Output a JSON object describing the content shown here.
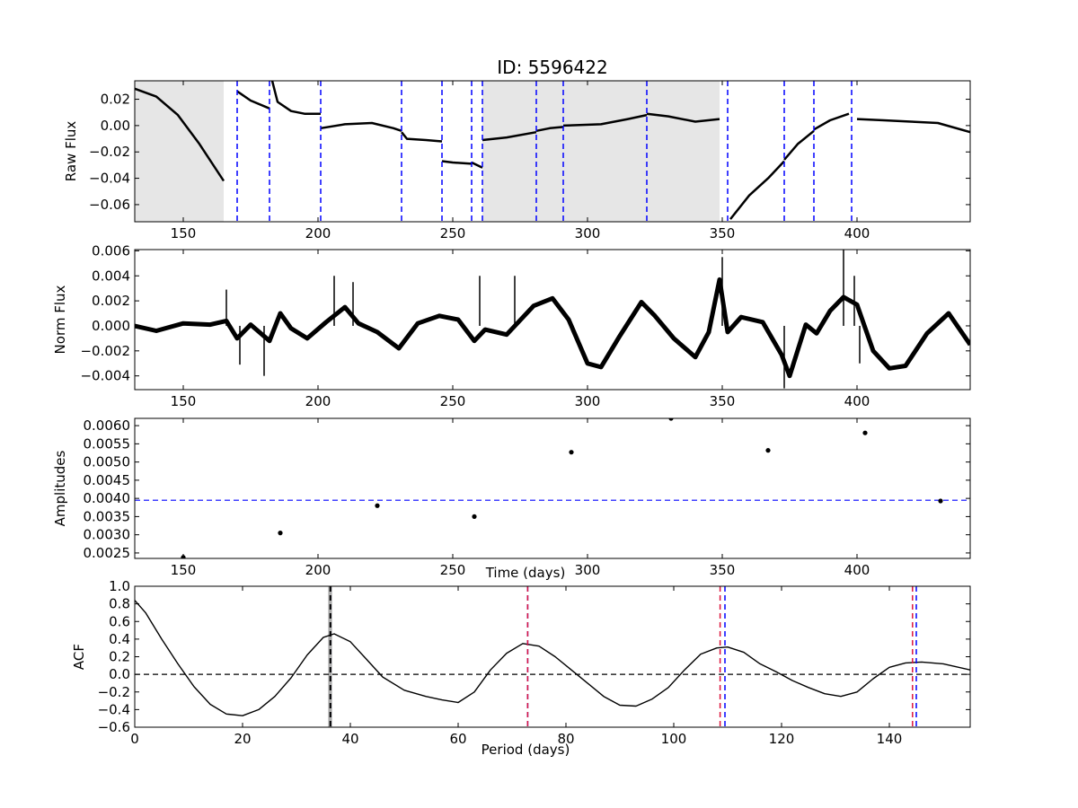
{
  "figure": {
    "title": "ID: 5596422"
  },
  "chart_data": [
    {
      "type": "line",
      "panel": "raw",
      "title": "ID: 5596422",
      "xlabel": "",
      "ylabel": "Raw Flux",
      "xlim": [
        132,
        442
      ],
      "ylim": [
        -0.073,
        0.034
      ],
      "xticks": [
        150,
        200,
        250,
        300,
        350,
        400
      ],
      "yticks": [
        -0.06,
        -0.04,
        -0.02,
        0.0,
        0.02
      ],
      "ytick_labels": [
        "−0.06",
        "−0.04",
        "−0.02",
        "0.00",
        "0.02"
      ],
      "shaded_regions": [
        [
          132,
          165
        ],
        [
          261,
          349
        ]
      ],
      "shade_color": "#e6e6e6",
      "line_color": "#000000",
      "vline_color": "#0000ff",
      "quarter_boundaries": [
        170,
        182,
        201,
        231,
        246,
        257,
        261,
        281,
        291,
        322,
        352,
        373,
        384,
        398
      ],
      "segments": [
        {
          "x": [
            132,
            140,
            148,
            156,
            165
          ],
          "y": [
            0.028,
            0.022,
            0.008,
            -0.014,
            -0.042
          ]
        },
        {
          "x": [
            170,
            175,
            182
          ],
          "y": [
            0.026,
            0.019,
            0.013
          ]
        },
        {
          "x": [
            183,
            185,
            190,
            195,
            201
          ],
          "y": [
            0.034,
            0.018,
            0.011,
            0.009,
            0.009
          ]
        },
        {
          "x": [
            201,
            210,
            220,
            228,
            231
          ],
          "y": [
            -0.002,
            0.001,
            0.002,
            -0.002,
            -0.004
          ]
        },
        {
          "x": [
            231,
            233,
            240,
            246
          ],
          "y": [
            -0.005,
            -0.01,
            -0.011,
            -0.012
          ]
        },
        {
          "x": [
            246,
            250,
            257
          ],
          "y": [
            -0.027,
            -0.028,
            -0.029
          ]
        },
        {
          "x": [
            257,
            259,
            261
          ],
          "y": [
            -0.028,
            -0.03,
            -0.032
          ]
        },
        {
          "x": [
            261,
            270,
            281
          ],
          "y": [
            -0.011,
            -0.009,
            -0.005
          ]
        },
        {
          "x": [
            281,
            286,
            291
          ],
          "y": [
            -0.004,
            -0.002,
            -0.001
          ]
        },
        {
          "x": [
            291,
            305,
            315,
            322
          ],
          "y": [
            0.0,
            0.001,
            0.005,
            0.008
          ]
        },
        {
          "x": [
            322,
            330,
            340,
            349
          ],
          "y": [
            0.009,
            0.007,
            0.003,
            0.005
          ]
        },
        {
          "x": [
            353,
            360,
            367,
            373
          ],
          "y": [
            -0.071,
            -0.053,
            -0.04,
            -0.027
          ]
        },
        {
          "x": [
            373,
            378,
            384
          ],
          "y": [
            -0.026,
            -0.014,
            -0.004
          ]
        },
        {
          "x": [
            384,
            390,
            397
          ],
          "y": [
            -0.003,
            0.004,
            0.009
          ]
        },
        {
          "x": [
            400,
            410,
            420,
            430,
            442
          ],
          "y": [
            0.005,
            0.004,
            0.003,
            0.002,
            -0.005
          ]
        }
      ]
    },
    {
      "type": "line",
      "panel": "norm",
      "xlabel": "",
      "ylabel": "Norm Flux",
      "xlim": [
        132,
        442
      ],
      "ylim": [
        -0.0051,
        0.0061
      ],
      "xticks": [
        150,
        200,
        250,
        300,
        350,
        400
      ],
      "yticks": [
        -0.004,
        -0.002,
        0.0,
        0.002,
        0.004,
        0.006
      ],
      "ytick_labels": [
        "−0.004",
        "−0.002",
        "0.000",
        "0.002",
        "0.004",
        "0.006"
      ],
      "line_color": "#000000",
      "x": [
        132,
        140,
        150,
        160,
        166,
        170,
        175,
        182,
        186,
        190,
        196,
        203,
        210,
        215,
        222,
        230,
        237,
        245,
        252,
        258,
        262,
        270,
        280,
        287,
        293,
        300,
        305,
        312,
        320,
        325,
        332,
        340,
        345,
        349,
        352,
        357,
        365,
        372,
        375,
        381,
        385,
        390,
        395,
        400,
        406,
        412,
        418,
        426,
        434,
        442
      ],
      "y": [
        0.0,
        -0.0004,
        0.0002,
        0.0001,
        0.0004,
        -0.001,
        0.0001,
        -0.0012,
        0.001,
        -0.0002,
        -0.001,
        0.0003,
        0.0015,
        0.0002,
        -0.0005,
        -0.0018,
        0.0002,
        0.0008,
        0.0005,
        -0.0012,
        -0.0003,
        -0.0007,
        0.0016,
        0.0022,
        0.0005,
        -0.003,
        -0.0033,
        -0.0008,
        0.0019,
        0.0008,
        -0.001,
        -0.0025,
        -0.0005,
        0.0037,
        -0.0005,
        0.0007,
        0.0003,
        -0.0023,
        -0.004,
        0.0001,
        -0.0006,
        0.0012,
        0.0023,
        0.0017,
        -0.002,
        -0.0034,
        -0.0032,
        -0.0006,
        0.001,
        -0.0015
      ],
      "spikes": [
        {
          "x": 166,
          "y": 0.0029
        },
        {
          "x": 171,
          "y": -0.0031
        },
        {
          "x": 180,
          "y": -0.004
        },
        {
          "x": 206,
          "y": 0.004
        },
        {
          "x": 213,
          "y": 0.0035
        },
        {
          "x": 260,
          "y": 0.004
        },
        {
          "x": 273,
          "y": 0.004
        },
        {
          "x": 350,
          "y": 0.0055
        },
        {
          "x": 373,
          "y": -0.005
        },
        {
          "x": 395,
          "y": 0.0061
        },
        {
          "x": 399,
          "y": 0.004
        },
        {
          "x": 401,
          "y": -0.003
        }
      ]
    },
    {
      "type": "scatter",
      "panel": "amplitudes",
      "xlabel": "Time (days)",
      "ylabel": "Amplitudes",
      "xlim": [
        132,
        442
      ],
      "ylim": [
        0.00235,
        0.0062
      ],
      "xticks": [
        150,
        200,
        250,
        300,
        350,
        400
      ],
      "yticks": [
        0.0025,
        0.003,
        0.0035,
        0.004,
        0.0045,
        0.005,
        0.0055,
        0.006
      ],
      "ytick_labels": [
        "0.0025",
        "0.0030",
        "0.0035",
        "0.0040",
        "0.0045",
        "0.0050",
        "0.0055",
        "0.0060"
      ],
      "marker_color": "#000000",
      "hline_color": "#0000ff",
      "x": [
        150,
        186,
        222,
        258,
        294,
        331,
        367,
        403,
        431
      ],
      "y": [
        0.00238,
        0.00305,
        0.0038,
        0.0035,
        0.00527,
        0.0062,
        0.00532,
        0.0058,
        0.00393
      ],
      "threshold": 0.00395
    },
    {
      "type": "line",
      "panel": "acf",
      "xlabel": "Period (days)",
      "ylabel": "ACF",
      "xlim": [
        0,
        155
      ],
      "ylim": [
        -0.6,
        1.0
      ],
      "xticks": [
        0,
        20,
        40,
        60,
        80,
        100,
        120,
        140
      ],
      "yticks": [
        -0.6,
        -0.4,
        -0.2,
        0.0,
        0.2,
        0.4,
        0.6,
        0.8,
        1.0
      ],
      "ytick_labels": [
        "−0.6",
        "−0.4",
        "−0.2",
        "0.0",
        "0.2",
        "0.4",
        "0.6",
        "0.8",
        "1.0"
      ],
      "line_color": "#000000",
      "zero_line_color": "#000000",
      "red_line_color": "#dc143c",
      "blue_line_color": "#0000ff",
      "shade_color": "#aaaaaa",
      "shaded_period": [
        35.9,
        36.6
      ],
      "highlight_period": 36.3,
      "red_lines": [
        72.9,
        108.6,
        144.3
      ],
      "blue_lines": [
        36.3,
        72.9,
        109.5,
        145.0
      ],
      "x": [
        0,
        2,
        5,
        8,
        11,
        14,
        17,
        20,
        23,
        26,
        29,
        32,
        35,
        37,
        40,
        43,
        46,
        50,
        54,
        57,
        60,
        63,
        66,
        69,
        72,
        75,
        78,
        81,
        84,
        87,
        90,
        93,
        96,
        99,
        102,
        105,
        108,
        110,
        113,
        116,
        119,
        122,
        125,
        128,
        131,
        134,
        137,
        140,
        143,
        146,
        150,
        155
      ],
      "y": [
        0.84,
        0.7,
        0.4,
        0.12,
        -0.14,
        -0.34,
        -0.45,
        -0.47,
        -0.4,
        -0.25,
        -0.04,
        0.22,
        0.42,
        0.46,
        0.37,
        0.17,
        -0.03,
        -0.18,
        -0.25,
        -0.29,
        -0.32,
        -0.2,
        0.05,
        0.24,
        0.35,
        0.32,
        0.2,
        0.05,
        -0.1,
        -0.25,
        -0.35,
        -0.36,
        -0.28,
        -0.15,
        0.05,
        0.23,
        0.3,
        0.31,
        0.25,
        0.12,
        0.03,
        -0.07,
        -0.15,
        -0.22,
        -0.25,
        -0.2,
        -0.05,
        0.08,
        0.13,
        0.14,
        0.12,
        0.05
      ]
    }
  ]
}
